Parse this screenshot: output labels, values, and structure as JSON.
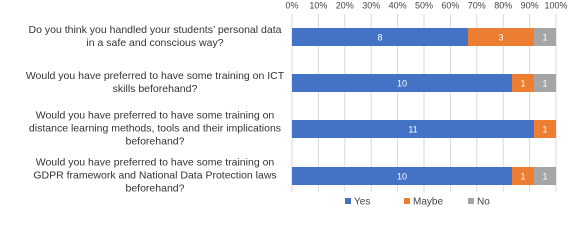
{
  "chart_data": {
    "type": "bar",
    "orientation": "horizontal",
    "stacking": "percent",
    "categories": [
      "Do you think you handled your students’ personal data in a safe and conscious way?",
      "Would you have preferred to have some training on ICT skills beforehand?",
      "Would you have preferred to have some training on distance learning methods, tools and their implications beforehand?",
      "Would you have preferred to have some training on GDPR framework and National Data Protection laws beforehand?"
    ],
    "series": [
      {
        "name": "Yes",
        "color": "#4472c4",
        "values": [
          8,
          10,
          11,
          10
        ]
      },
      {
        "name": "Maybe",
        "color": "#ed7d31",
        "values": [
          3,
          1,
          1,
          1
        ]
      },
      {
        "name": "No",
        "color": "#a5a5a5",
        "values": [
          1,
          1,
          null,
          1
        ]
      }
    ],
    "xlim": [
      0,
      100
    ],
    "xticks": [
      {
        "value": 0,
        "label": "0%"
      },
      {
        "value": 10,
        "label": "10%"
      },
      {
        "value": 20,
        "label": "20%"
      },
      {
        "value": 30,
        "label": "30%"
      },
      {
        "value": 40,
        "label": "40%"
      },
      {
        "value": 50,
        "label": "50%"
      },
      {
        "value": 60,
        "label": "60%"
      },
      {
        "value": 70,
        "label": "70%"
      },
      {
        "value": 80,
        "label": "80%"
      },
      {
        "value": 90,
        "label": "90%"
      },
      {
        "value": 100,
        "label": "100%"
      }
    ],
    "grid": true,
    "legend": "bottom"
  }
}
